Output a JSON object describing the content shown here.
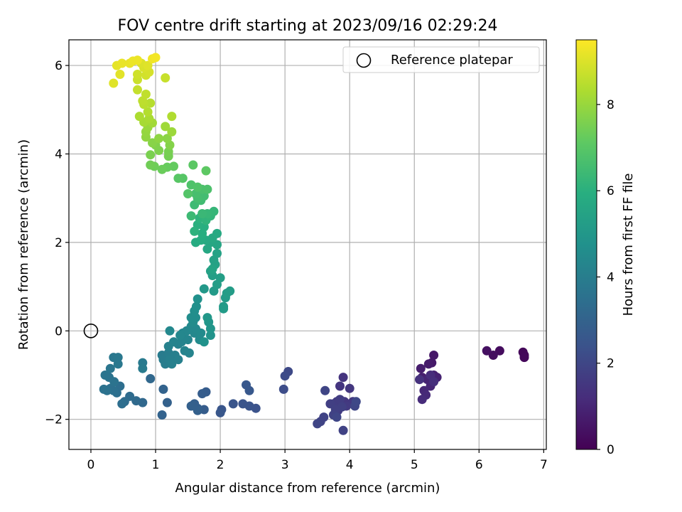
{
  "chart_data": {
    "type": "scatter",
    "title": "FOV centre drift starting at 2023/09/16 02:29:24",
    "xlabel": "Angular distance from reference (arcmin)",
    "ylabel": "Rotation from reference (arcmin)",
    "xlim": [
      -0.34,
      7.04
    ],
    "ylim": [
      -2.68,
      6.58
    ],
    "xticks": [
      0,
      1,
      2,
      3,
      4,
      5,
      6,
      7
    ],
    "yticks": [
      -2,
      0,
      2,
      4,
      6
    ],
    "grid": true,
    "colormap": "viridis",
    "colorbar": {
      "label": "Hours from first FF file",
      "min": 0,
      "max": 9.5,
      "ticks": [
        0,
        2,
        4,
        6,
        8
      ]
    },
    "legend": {
      "position": "top-right",
      "entries": [
        {
          "label": "Reference platepar",
          "marker": "open-circle"
        }
      ]
    },
    "reference_point": {
      "x": 0,
      "y": 0
    },
    "point_columns": [
      "x",
      "y",
      "hours"
    ],
    "points": [
      [
        6.7,
        -0.55,
        0.1
      ],
      [
        6.68,
        -0.48,
        0.15
      ],
      [
        6.7,
        -0.6,
        0.2
      ],
      [
        6.32,
        -0.45,
        0.3
      ],
      [
        6.22,
        -0.55,
        0.35
      ],
      [
        6.12,
        -0.45,
        0.4
      ],
      [
        5.3,
        -0.55,
        0.6
      ],
      [
        5.27,
        -0.72,
        0.65
      ],
      [
        5.22,
        -0.75,
        0.7
      ],
      [
        5.1,
        -0.85,
        0.75
      ],
      [
        5.12,
        -1.05,
        0.8
      ],
      [
        5.3,
        -1.0,
        0.85
      ],
      [
        5.35,
        -1.05,
        0.9
      ],
      [
        5.2,
        -1.1,
        0.95
      ],
      [
        5.25,
        -1.25,
        1.0
      ],
      [
        5.15,
        -1.35,
        1.05
      ],
      [
        5.18,
        -1.45,
        1.1
      ],
      [
        5.12,
        -1.55,
        1.15
      ],
      [
        5.25,
        -1.0,
        1.2
      ],
      [
        5.3,
        -1.15,
        1.25
      ],
      [
        5.08,
        -1.1,
        1.3
      ],
      [
        3.9,
        -1.05,
        1.4
      ],
      [
        3.85,
        -1.25,
        1.45
      ],
      [
        4.0,
        -1.3,
        1.5
      ],
      [
        3.92,
        -1.6,
        1.5
      ],
      [
        4.05,
        -1.6,
        1.55
      ],
      [
        3.95,
        -1.7,
        1.6
      ],
      [
        3.8,
        -1.6,
        1.6
      ],
      [
        3.82,
        -1.8,
        1.65
      ],
      [
        3.75,
        -1.65,
        1.7
      ],
      [
        3.85,
        -1.55,
        1.7
      ],
      [
        3.7,
        -1.65,
        1.75
      ],
      [
        3.88,
        -1.72,
        1.8
      ],
      [
        3.78,
        -1.78,
        1.8
      ],
      [
        3.9,
        -2.25,
        1.85
      ],
      [
        3.75,
        -1.9,
        1.85
      ],
      [
        3.6,
        -1.95,
        1.9
      ],
      [
        3.55,
        -2.05,
        1.9
      ],
      [
        3.5,
        -2.1,
        1.95
      ],
      [
        3.62,
        -1.35,
        1.95
      ],
      [
        3.8,
        -1.95,
        2.0
      ],
      [
        4.08,
        -1.7,
        2.0
      ],
      [
        4.1,
        -1.6,
        2.05
      ],
      [
        3.05,
        -0.92,
        2.1
      ],
      [
        3.0,
        -1.02,
        2.15
      ],
      [
        2.98,
        -1.32,
        2.2
      ],
      [
        2.55,
        -1.75,
        2.4
      ],
      [
        2.45,
        -1.7,
        2.45
      ],
      [
        2.35,
        -1.65,
        2.45
      ],
      [
        2.2,
        -1.65,
        2.5
      ],
      [
        2.02,
        -1.78,
        2.5
      ],
      [
        2.0,
        -1.85,
        2.55
      ],
      [
        2.45,
        -1.35,
        2.6
      ],
      [
        2.4,
        -1.22,
        2.6
      ],
      [
        1.78,
        -1.38,
        2.75
      ],
      [
        1.72,
        -1.42,
        2.8
      ],
      [
        1.75,
        -1.78,
        2.8
      ],
      [
        1.65,
        -1.75,
        2.85
      ],
      [
        1.6,
        -1.65,
        2.85
      ],
      [
        1.65,
        -1.8,
        2.9
      ],
      [
        1.55,
        -1.7,
        2.9
      ],
      [
        1.18,
        -1.62,
        2.95
      ],
      [
        1.12,
        -1.32,
        3.0
      ],
      [
        1.1,
        -1.9,
        3.0
      ],
      [
        0.92,
        -1.08,
        3.2
      ],
      [
        0.8,
        -1.62,
        3.2
      ],
      [
        0.7,
        -1.58,
        3.25
      ],
      [
        0.6,
        -1.48,
        3.3
      ],
      [
        0.52,
        -1.6,
        3.35
      ],
      [
        0.48,
        -1.65,
        3.4
      ],
      [
        0.45,
        -1.25,
        3.4
      ],
      [
        0.4,
        -1.4,
        3.45
      ],
      [
        0.35,
        -1.35,
        3.5
      ],
      [
        0.3,
        -1.3,
        3.5
      ],
      [
        0.25,
        -1.35,
        3.55
      ],
      [
        0.2,
        -1.32,
        3.55
      ],
      [
        0.36,
        -1.15,
        3.6
      ],
      [
        0.28,
        -1.05,
        3.6
      ],
      [
        0.22,
        -1.0,
        3.65
      ],
      [
        0.3,
        -0.85,
        3.7
      ],
      [
        0.35,
        -0.6,
        3.75
      ],
      [
        0.42,
        -0.6,
        3.8
      ],
      [
        0.42,
        -0.75,
        3.8
      ],
      [
        0.8,
        -0.72,
        3.85
      ],
      [
        0.8,
        -0.85,
        3.9
      ],
      [
        1.1,
        -0.55,
        3.9
      ],
      [
        1.12,
        -0.65,
        3.95
      ],
      [
        1.15,
        -0.75,
        4.0
      ],
      [
        1.2,
        -0.5,
        4.0
      ],
      [
        1.3,
        -0.55,
        4.05
      ],
      [
        1.22,
        -0.65,
        4.05
      ],
      [
        1.25,
        -0.75,
        4.1
      ],
      [
        1.35,
        -0.65,
        4.1
      ],
      [
        1.35,
        -0.3,
        4.15
      ],
      [
        1.2,
        -0.35,
        4.15
      ],
      [
        1.28,
        -0.25,
        4.2
      ],
      [
        1.4,
        -0.25,
        4.2
      ],
      [
        1.45,
        -0.45,
        4.25
      ],
      [
        1.52,
        -0.5,
        4.25
      ],
      [
        1.5,
        -0.2,
        4.3
      ],
      [
        1.42,
        -0.05,
        4.3
      ],
      [
        1.48,
        0.0,
        4.35
      ],
      [
        1.38,
        -0.1,
        4.35
      ],
      [
        1.6,
        -0.05,
        4.4
      ],
      [
        1.62,
        0.05,
        4.45
      ],
      [
        1.55,
        0.1,
        4.45
      ],
      [
        1.68,
        -0.2,
        4.5
      ],
      [
        1.7,
        -0.05,
        4.5
      ],
      [
        1.58,
        0.2,
        4.55
      ],
      [
        1.62,
        0.3,
        4.6
      ],
      [
        1.55,
        0.3,
        4.6
      ],
      [
        1.6,
        0.45,
        4.65
      ],
      [
        1.63,
        0.55,
        4.7
      ],
      [
        1.65,
        0.72,
        4.75
      ],
      [
        1.75,
        -0.25,
        4.8
      ],
      [
        1.85,
        -0.1,
        4.85
      ],
      [
        1.85,
        0.05,
        4.9
      ],
      [
        1.82,
        0.2,
        4.95
      ],
      [
        1.8,
        0.3,
        5.0
      ],
      [
        1.22,
        0.0,
        4.4
      ],
      [
        1.75,
        0.95,
        5.05
      ],
      [
        1.9,
        0.9,
        5.1
      ],
      [
        2.05,
        0.55,
        5.1
      ],
      [
        2.05,
        0.5,
        5.15
      ],
      [
        2.08,
        0.75,
        5.15
      ],
      [
        2.1,
        0.85,
        5.2
      ],
      [
        2.15,
        0.9,
        5.2
      ],
      [
        1.95,
        1.05,
        5.25
      ],
      [
        2.0,
        1.2,
        5.3
      ],
      [
        1.88,
        1.25,
        5.3
      ],
      [
        1.85,
        1.35,
        5.35
      ],
      [
        1.92,
        1.5,
        5.4
      ],
      [
        1.9,
        1.6,
        5.4
      ],
      [
        1.95,
        1.75,
        5.45
      ],
      [
        1.88,
        1.4,
        5.5
      ],
      [
        1.95,
        1.95,
        5.55
      ],
      [
        1.85,
        2.0,
        5.6
      ],
      [
        1.8,
        1.85,
        5.65
      ],
      [
        1.88,
        2.1,
        5.7
      ],
      [
        1.95,
        2.2,
        5.75
      ],
      [
        1.78,
        2.05,
        5.75
      ],
      [
        1.62,
        2.0,
        5.8
      ],
      [
        1.7,
        2.05,
        5.85
      ],
      [
        1.72,
        2.2,
        5.9
      ],
      [
        1.75,
        2.35,
        5.95
      ],
      [
        1.65,
        2.4,
        6.0
      ],
      [
        1.6,
        2.25,
        6.05
      ],
      [
        1.68,
        2.55,
        6.1
      ],
      [
        1.78,
        2.5,
        6.15
      ],
      [
        1.85,
        2.6,
        6.2
      ],
      [
        1.9,
        2.7,
        6.25
      ],
      [
        1.8,
        2.65,
        6.3
      ],
      [
        1.72,
        2.65,
        6.35
      ],
      [
        1.55,
        2.6,
        6.4
      ],
      [
        1.6,
        2.85,
        6.45
      ],
      [
        1.7,
        2.95,
        6.5
      ],
      [
        1.75,
        3.05,
        6.55
      ],
      [
        1.65,
        3.0,
        6.6
      ],
      [
        1.62,
        3.1,
        6.65
      ],
      [
        1.72,
        3.2,
        6.7
      ],
      [
        1.8,
        3.2,
        6.75
      ],
      [
        1.55,
        3.3,
        6.8
      ],
      [
        1.65,
        3.25,
        6.85
      ],
      [
        1.5,
        3.1,
        6.9
      ],
      [
        1.42,
        3.45,
        6.95
      ],
      [
        1.35,
        3.45,
        7.0
      ],
      [
        1.58,
        3.75,
        7.05
      ],
      [
        1.78,
        3.62,
        7.1
      ],
      [
        1.28,
        3.72,
        7.2
      ],
      [
        1.18,
        3.7,
        7.25
      ],
      [
        1.1,
        3.65,
        7.3
      ],
      [
        0.98,
        3.72,
        7.35
      ],
      [
        0.92,
        3.75,
        7.4
      ],
      [
        1.2,
        3.95,
        7.45
      ],
      [
        1.2,
        4.05,
        7.5
      ],
      [
        0.92,
        3.98,
        7.55
      ],
      [
        1.05,
        4.08,
        7.6
      ],
      [
        1.0,
        4.2,
        7.65
      ],
      [
        1.22,
        4.2,
        7.7
      ],
      [
        0.95,
        4.25,
        7.75
      ],
      [
        1.18,
        4.35,
        7.8
      ],
      [
        1.05,
        4.35,
        7.85
      ],
      [
        0.85,
        4.38,
        7.9
      ],
      [
        0.85,
        4.5,
        7.95
      ],
      [
        0.88,
        4.6,
        8.0
      ],
      [
        1.25,
        4.5,
        8.05
      ],
      [
        1.15,
        4.62,
        8.1
      ],
      [
        0.95,
        4.7,
        8.15
      ],
      [
        0.82,
        4.72,
        8.2
      ],
      [
        0.9,
        4.8,
        8.25
      ],
      [
        0.75,
        4.85,
        8.3
      ],
      [
        1.25,
        4.85,
        8.35
      ],
      [
        0.88,
        4.95,
        8.4
      ],
      [
        0.92,
        5.15,
        8.45
      ],
      [
        0.82,
        5.12,
        8.5
      ],
      [
        0.8,
        5.2,
        8.55
      ],
      [
        0.85,
        5.35,
        8.6
      ],
      [
        0.72,
        5.45,
        8.65
      ],
      [
        1.15,
        5.72,
        8.7
      ],
      [
        0.72,
        5.68,
        8.75
      ],
      [
        0.72,
        5.8,
        8.8
      ],
      [
        0.85,
        5.78,
        8.85
      ],
      [
        0.9,
        5.85,
        8.9
      ],
      [
        0.82,
        5.95,
        8.95
      ],
      [
        0.78,
        6.05,
        9.0
      ],
      [
        0.88,
        6.0,
        9.05
      ],
      [
        0.35,
        5.6,
        9.05
      ],
      [
        0.45,
        5.8,
        9.1
      ],
      [
        0.4,
        6.0,
        9.15
      ],
      [
        0.48,
        6.05,
        9.2
      ],
      [
        0.6,
        6.05,
        9.2
      ],
      [
        0.65,
        6.1,
        9.25
      ],
      [
        0.72,
        6.12,
        9.25
      ],
      [
        0.95,
        6.15,
        9.3
      ],
      [
        1.0,
        6.18,
        9.35
      ]
    ]
  }
}
